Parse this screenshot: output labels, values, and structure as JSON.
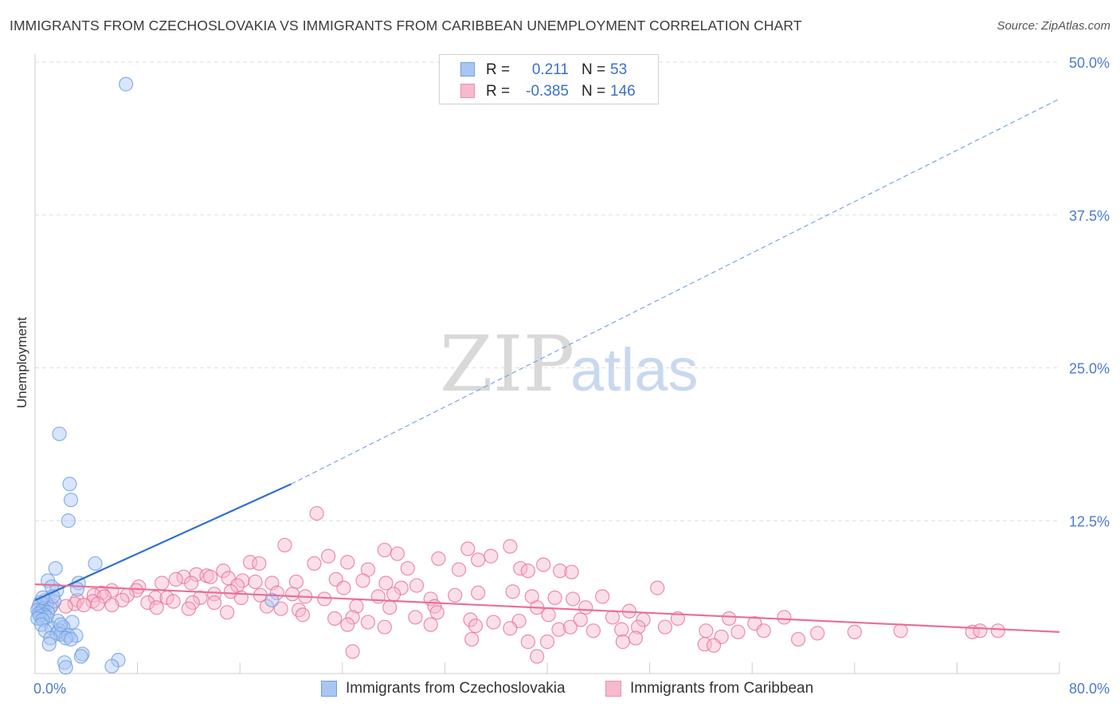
{
  "title": "IMMIGRANTS FROM CZECHOSLOVAKIA VS IMMIGRANTS FROM CARIBBEAN UNEMPLOYMENT CORRELATION CHART",
  "source": "Source: ZipAtlas.com",
  "watermark": {
    "zip": "ZIP",
    "atlas": "atlas"
  },
  "stats": [
    {
      "r_label": "R =",
      "r_value": "0.211",
      "n_label": "N =",
      "n_value": "53",
      "color": "#a9c6f3",
      "border": "#6f9de0"
    },
    {
      "r_label": "R =",
      "r_value": "-0.385",
      "n_label": "N =",
      "n_value": "146",
      "color": "#f6b9cd",
      "border": "#ea8fae"
    }
  ],
  "legend": [
    {
      "label": "Immigrants from Czechoslovakia",
      "color": "#a9c6f3",
      "border": "#6f9de0"
    },
    {
      "label": "Immigrants from Caribbean",
      "color": "#f6b9cd",
      "border": "#ea8fae"
    }
  ],
  "chart_data": {
    "type": "scatter",
    "xlabel": "",
    "ylabel": "Unemployment",
    "xlim": [
      0,
      80
    ],
    "ylim": [
      0,
      50
    ],
    "x_tick_labels": [
      "0.0%",
      "80.0%"
    ],
    "y_ticks": [
      12.5,
      25.0,
      37.5,
      50.0
    ],
    "y_tick_labels": [
      "12.5%",
      "25.0%",
      "37.5%",
      "50.0%"
    ],
    "grid": true,
    "series": [
      {
        "name": "Immigrants from Czechoslovakia",
        "color": "#6f9de0",
        "fill": "#a9c6f3",
        "trend": {
          "x0": 0.0,
          "y0": 6.0,
          "x1": 20.0,
          "y1": 15.5,
          "x_extend_to": 80.0,
          "y_extend_to": 47.0
        },
        "points": [
          [
            7.1,
            48.2
          ],
          [
            1.9,
            19.6
          ],
          [
            2.7,
            15.5
          ],
          [
            2.8,
            14.2
          ],
          [
            2.6,
            12.5
          ],
          [
            4.7,
            9.0
          ],
          [
            1.6,
            8.6
          ],
          [
            3.4,
            7.4
          ],
          [
            1.0,
            7.6
          ],
          [
            1.7,
            6.8
          ],
          [
            1.3,
            7.1
          ],
          [
            3.3,
            6.9
          ],
          [
            0.8,
            6.0
          ],
          [
            1.5,
            5.9
          ],
          [
            0.4,
            5.8
          ],
          [
            0.9,
            5.7
          ],
          [
            0.3,
            5.5
          ],
          [
            1.2,
            5.4
          ],
          [
            0.6,
            5.3
          ],
          [
            0.2,
            5.2
          ],
          [
            0.5,
            5.1
          ],
          [
            1.0,
            5.0
          ],
          [
            0.3,
            4.9
          ],
          [
            0.7,
            4.8
          ],
          [
            0.4,
            4.7
          ],
          [
            0.9,
            4.6
          ],
          [
            0.2,
            4.5
          ],
          [
            0.6,
            4.4
          ],
          [
            1.8,
            4.3
          ],
          [
            2.9,
            4.2
          ],
          [
            0.5,
            4.0
          ],
          [
            2.2,
            3.8
          ],
          [
            1.3,
            3.7
          ],
          [
            1.9,
            3.5
          ],
          [
            0.8,
            3.5
          ],
          [
            1.7,
            3.3
          ],
          [
            2.0,
            3.2
          ],
          [
            2.6,
            3.1
          ],
          [
            3.2,
            3.1
          ],
          [
            1.2,
            2.9
          ],
          [
            2.4,
            2.9
          ],
          [
            2.8,
            2.8
          ],
          [
            1.1,
            2.4
          ],
          [
            3.7,
            1.6
          ],
          [
            3.6,
            1.4
          ],
          [
            6.5,
            1.1
          ],
          [
            2.3,
            0.9
          ],
          [
            6.0,
            0.6
          ],
          [
            2.4,
            0.5
          ],
          [
            18.5,
            6.0
          ],
          [
            1.4,
            6.3
          ],
          [
            2.0,
            4.0
          ],
          [
            0.6,
            6.2
          ]
        ]
      },
      {
        "name": "Immigrants from Caribbean",
        "color": "#e8709a",
        "fill": "#f6b9cd",
        "trend": {
          "x0": 0.0,
          "y0": 7.3,
          "x1": 80.0,
          "y1": 3.4
        },
        "points": [
          [
            22.0,
            13.1
          ],
          [
            19.5,
            10.5
          ],
          [
            27.3,
            10.1
          ],
          [
            33.8,
            10.2
          ],
          [
            28.3,
            9.8
          ],
          [
            22.9,
            9.6
          ],
          [
            31.5,
            9.4
          ],
          [
            35.6,
            9.6
          ],
          [
            37.1,
            10.4
          ],
          [
            34.6,
            9.3
          ],
          [
            24.4,
            9.1
          ],
          [
            21.8,
            9.0
          ],
          [
            16.8,
            9.1
          ],
          [
            17.5,
            9.0
          ],
          [
            29.1,
            8.6
          ],
          [
            26.0,
            8.5
          ],
          [
            33.1,
            8.5
          ],
          [
            37.9,
            8.6
          ],
          [
            39.7,
            8.9
          ],
          [
            41.0,
            8.4
          ],
          [
            41.9,
            8.3
          ],
          [
            38.5,
            8.4
          ],
          [
            14.7,
            8.4
          ],
          [
            12.6,
            8.1
          ],
          [
            13.4,
            8.0
          ],
          [
            11.6,
            7.9
          ],
          [
            11.0,
            7.7
          ],
          [
            12.2,
            7.4
          ],
          [
            13.7,
            7.9
          ],
          [
            15.1,
            7.8
          ],
          [
            16.2,
            7.6
          ],
          [
            17.2,
            7.5
          ],
          [
            15.8,
            7.2
          ],
          [
            18.5,
            7.4
          ],
          [
            20.4,
            7.5
          ],
          [
            23.5,
            7.7
          ],
          [
            25.6,
            7.6
          ],
          [
            27.4,
            7.4
          ],
          [
            29.8,
            7.2
          ],
          [
            28.6,
            7.0
          ],
          [
            9.9,
            7.4
          ],
          [
            8.1,
            7.1
          ],
          [
            7.9,
            6.8
          ],
          [
            6.0,
            6.8
          ],
          [
            5.2,
            6.6
          ],
          [
            4.6,
            6.4
          ],
          [
            5.4,
            6.3
          ],
          [
            7.2,
            6.4
          ],
          [
            9.4,
            6.2
          ],
          [
            10.3,
            6.2
          ],
          [
            12.9,
            6.2
          ],
          [
            14.0,
            6.5
          ],
          [
            15.3,
            6.7
          ],
          [
            16.1,
            6.2
          ],
          [
            17.6,
            6.4
          ],
          [
            18.9,
            6.6
          ],
          [
            20.1,
            6.5
          ],
          [
            21.1,
            6.3
          ],
          [
            22.6,
            6.1
          ],
          [
            24.1,
            7.0
          ],
          [
            26.8,
            6.3
          ],
          [
            28.0,
            6.5
          ],
          [
            30.9,
            6.1
          ],
          [
            32.8,
            6.4
          ],
          [
            34.6,
            6.6
          ],
          [
            37.3,
            6.7
          ],
          [
            38.8,
            6.3
          ],
          [
            40.6,
            6.2
          ],
          [
            42.0,
            6.1
          ],
          [
            44.3,
            6.3
          ],
          [
            48.6,
            7.0
          ],
          [
            3.3,
            6.0
          ],
          [
            3.1,
            5.7
          ],
          [
            4.5,
            5.9
          ],
          [
            6.8,
            6.0
          ],
          [
            8.8,
            5.8
          ],
          [
            10.8,
            5.9
          ],
          [
            12.3,
            5.8
          ],
          [
            14.0,
            5.8
          ],
          [
            18.1,
            5.5
          ],
          [
            20.6,
            5.2
          ],
          [
            25.1,
            5.5
          ],
          [
            27.7,
            5.4
          ],
          [
            31.2,
            5.5
          ],
          [
            39.2,
            5.4
          ],
          [
            43.0,
            5.4
          ],
          [
            46.4,
            5.1
          ],
          [
            1.3,
            5.6
          ],
          [
            2.4,
            5.5
          ],
          [
            3.8,
            5.6
          ],
          [
            4.9,
            5.7
          ],
          [
            6.0,
            5.6
          ],
          [
            9.5,
            5.4
          ],
          [
            12.0,
            5.3
          ],
          [
            15.0,
            5.0
          ],
          [
            19.2,
            5.3
          ],
          [
            20.9,
            4.8
          ],
          [
            23.4,
            4.5
          ],
          [
            24.8,
            4.6
          ],
          [
            26.0,
            4.2
          ],
          [
            29.7,
            4.6
          ],
          [
            31.4,
            5.0
          ],
          [
            34.0,
            4.4
          ],
          [
            35.8,
            4.2
          ],
          [
            37.8,
            4.3
          ],
          [
            40.1,
            4.8
          ],
          [
            42.6,
            4.4
          ],
          [
            45.1,
            4.6
          ],
          [
            47.5,
            4.4
          ],
          [
            50.2,
            4.5
          ],
          [
            54.2,
            4.5
          ],
          [
            56.2,
            4.1
          ],
          [
            58.5,
            4.6
          ],
          [
            24.4,
            4.0
          ],
          [
            27.3,
            3.8
          ],
          [
            30.9,
            4.0
          ],
          [
            34.4,
            3.9
          ],
          [
            37.1,
            3.7
          ],
          [
            40.9,
            3.6
          ],
          [
            41.8,
            3.8
          ],
          [
            43.6,
            3.5
          ],
          [
            45.8,
            3.6
          ],
          [
            47.1,
            3.8
          ],
          [
            49.2,
            3.8
          ],
          [
            52.4,
            3.5
          ],
          [
            54.9,
            3.4
          ],
          [
            56.9,
            3.5
          ],
          [
            61.1,
            3.3
          ],
          [
            64.0,
            3.4
          ],
          [
            67.6,
            3.5
          ],
          [
            73.2,
            3.4
          ],
          [
            75.2,
            3.5
          ],
          [
            73.8,
            3.5
          ],
          [
            53.6,
            3.0
          ],
          [
            59.6,
            2.8
          ],
          [
            46.9,
            2.9
          ],
          [
            40.0,
            2.6
          ],
          [
            38.5,
            2.6
          ],
          [
            34.1,
            2.8
          ],
          [
            45.9,
            2.6
          ],
          [
            52.3,
            2.4
          ],
          [
            53.0,
            2.3
          ],
          [
            24.8,
            1.8
          ],
          [
            39.2,
            1.4
          ]
        ]
      }
    ]
  }
}
